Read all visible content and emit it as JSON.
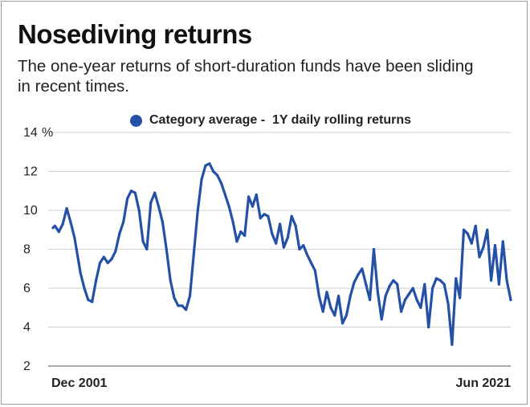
{
  "header": {
    "title": "Nosediving returns",
    "subtitle": "The one-year returns of short-duration funds have been sliding in recent times."
  },
  "colors": {
    "series": "#2451a6",
    "grid": "#cfcfcf",
    "axis": "#8a8a8a"
  },
  "chart_data": {
    "type": "line",
    "title": "Nosediving returns",
    "subtitle": "The one-year returns of short-duration funds have been sliding in recent times.",
    "xlabel": "",
    "ylabel": "",
    "y_unit_label": "%",
    "ylim": [
      2,
      14
    ],
    "yticks": [
      {
        "value": 14,
        "label": "14"
      },
      {
        "value": 12,
        "label": "12"
      },
      {
        "value": 10,
        "label": "10"
      },
      {
        "value": 8,
        "label": "8"
      },
      {
        "value": 6,
        "label": "6"
      },
      {
        "value": 4,
        "label": "4"
      },
      {
        "value": 2,
        "label": "2"
      }
    ],
    "xtick_labels": [
      {
        "label": "Dec 2001",
        "date": "2001-12"
      },
      {
        "label": "Jun 2021",
        "date": "2021-06"
      }
    ],
    "xlim": [
      "2001-12",
      "2021-06"
    ],
    "grid": true,
    "legend": {
      "position": "top",
      "entries": [
        "Category average -  1Y daily rolling returns"
      ]
    },
    "series": [
      {
        "name": "Category average -  1Y daily rolling returns",
        "x": [
          "2001-12",
          "2002-01",
          "2002-03",
          "2002-05",
          "2002-07",
          "2002-09",
          "2002-11",
          "2003-01",
          "2003-02",
          "2003-04",
          "2003-06",
          "2003-08",
          "2003-10",
          "2003-12",
          "2004-02",
          "2004-04",
          "2004-06",
          "2004-08",
          "2004-10",
          "2004-12",
          "2005-02",
          "2005-04",
          "2005-06",
          "2005-08",
          "2005-10",
          "2005-12",
          "2006-02",
          "2006-04",
          "2006-06",
          "2006-08",
          "2006-10",
          "2006-12",
          "2007-02",
          "2007-04",
          "2007-06",
          "2007-08",
          "2007-10",
          "2007-12",
          "2008-02",
          "2008-04",
          "2008-06",
          "2008-08",
          "2008-10",
          "2008-12",
          "2009-02",
          "2009-04",
          "2009-06",
          "2009-08",
          "2009-10",
          "2009-12",
          "2010-02",
          "2010-04",
          "2010-06",
          "2010-08",
          "2010-10",
          "2010-12",
          "2011-02",
          "2011-04",
          "2011-06",
          "2011-08",
          "2011-10",
          "2011-12",
          "2012-02",
          "2012-04",
          "2012-06",
          "2012-08",
          "2012-10",
          "2012-12",
          "2013-02",
          "2013-04",
          "2013-06",
          "2013-08",
          "2013-10",
          "2013-12",
          "2014-02",
          "2014-04",
          "2014-06",
          "2014-08",
          "2014-10",
          "2014-12",
          "2015-02",
          "2015-04",
          "2015-06",
          "2015-08",
          "2015-10",
          "2015-12",
          "2016-02",
          "2016-04",
          "2016-06",
          "2016-08",
          "2016-10",
          "2016-12",
          "2017-02",
          "2017-04",
          "2017-06",
          "2017-08",
          "2017-10",
          "2017-12",
          "2018-02",
          "2018-04",
          "2018-06",
          "2018-08",
          "2018-10",
          "2018-12",
          "2019-02",
          "2019-04",
          "2019-06",
          "2019-08",
          "2019-10",
          "2019-12",
          "2020-02",
          "2020-04",
          "2020-06",
          "2020-08",
          "2020-10",
          "2020-12",
          "2021-02",
          "2021-04",
          "2021-06"
        ],
        "values": [
          9.1,
          9.2,
          8.9,
          9.3,
          10.1,
          9.4,
          8.6,
          7.4,
          6.8,
          6.0,
          5.4,
          5.3,
          6.4,
          7.3,
          7.6,
          7.3,
          7.5,
          7.9,
          8.8,
          9.4,
          10.6,
          11.0,
          10.9,
          10.0,
          8.4,
          8.0,
          10.4,
          10.9,
          10.2,
          9.4,
          8.0,
          6.4,
          5.5,
          5.1,
          5.1,
          4.9,
          5.6,
          7.8,
          10.0,
          11.6,
          12.3,
          12.4,
          12.0,
          11.8,
          11.4,
          10.8,
          10.2,
          9.4,
          8.4,
          8.9,
          8.7,
          10.7,
          10.2,
          10.8,
          9.6,
          9.8,
          9.7,
          8.8,
          8.3,
          9.3,
          8.1,
          8.6,
          9.7,
          9.2,
          8.0,
          8.2,
          7.7,
          7.3,
          6.9,
          5.6,
          4.8,
          5.8,
          5.0,
          4.6,
          5.6,
          4.2,
          4.6,
          5.6,
          6.3,
          6.7,
          7.0,
          6.2,
          5.4,
          8.0,
          5.8,
          4.4,
          5.6,
          6.1,
          6.4,
          6.2,
          4.8,
          5.4,
          5.7,
          6.0,
          5.4,
          5.0,
          6.2,
          4.0,
          6.0,
          6.5,
          6.4,
          6.2,
          5.2,
          3.1,
          6.5,
          5.5,
          9.0,
          8.8,
          8.3,
          9.2,
          7.6,
          8.1,
          9.0,
          6.4,
          8.2,
          6.2,
          8.4,
          6.4,
          5.4
        ]
      }
    ]
  }
}
